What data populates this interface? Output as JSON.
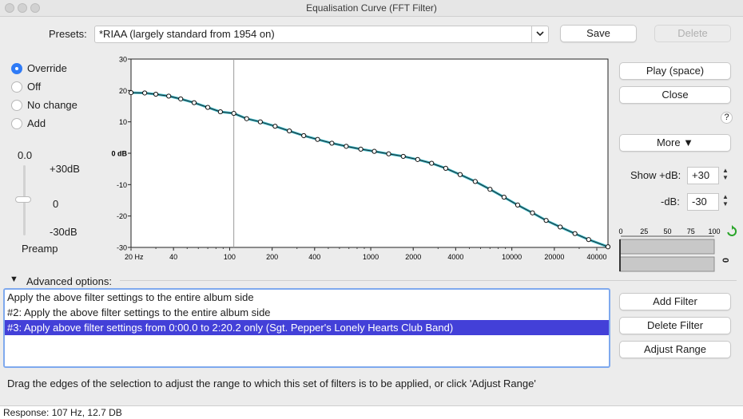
{
  "window": {
    "title": "Equalisation Curve (FFT Filter)"
  },
  "presets": {
    "label": "Presets:",
    "value": "*RIAA (largely standard from 1954 on)",
    "save": "Save",
    "delete": "Delete"
  },
  "mode": {
    "options": [
      "Override",
      "Off",
      "No change",
      "Add"
    ],
    "selected": "Override"
  },
  "preamp": {
    "value": "0.0",
    "max": "+30dB",
    "mid": "0",
    "min": "-30dB",
    "label": "Preamp"
  },
  "graph": {
    "y_ticks": [
      "30",
      "20",
      "10",
      "0 dB",
      "-10",
      "-20",
      "-30"
    ],
    "x_ticks": [
      "20 Hz",
      "40",
      "100",
      "200",
      "400",
      "1000",
      "2000",
      "4000",
      "10000",
      "20000",
      "40000"
    ],
    "response_marker_hz": 107
  },
  "buttons": {
    "play": "Play (space)",
    "close": "Close",
    "help": "?",
    "more": "More ▼"
  },
  "range": {
    "show_label": "Show +dB:",
    "show_value": "+30",
    "minus_label": "-dB:",
    "minus_value": "-30"
  },
  "meter": {
    "ticks": [
      "0",
      "25",
      "50",
      "75",
      "100"
    ],
    "side_value": "0"
  },
  "advanced": {
    "label": "Advanced options:"
  },
  "filters": {
    "items": [
      "Apply the above filter settings to the entire album side",
      "#2: Apply the above filter settings to the entire album side",
      "#3: Apply above filter settings from 0:00.0 to 2:20.2 only (Sgt. Pepper's Lonely Hearts Club Band)"
    ],
    "selected_index": 2,
    "add": "Add Filter",
    "delete": "Delete Filter",
    "adjust": "Adjust Range"
  },
  "hint": "Drag the edges of the selection to adjust the range to which this set of filters is to be applied, or click 'Adjust Range'",
  "status": "Response: 107 Hz, 12.7 DB",
  "colors": {
    "accent": "#2f7bf6",
    "selection": "#4340d8",
    "curve": "#3bb6c4"
  },
  "chart_data": {
    "type": "line",
    "xscale": "log",
    "xlim": [
      20,
      48000
    ],
    "ylim": [
      -30,
      30
    ],
    "x": [
      20,
      25,
      30,
      37,
      45,
      56,
      70,
      86,
      107,
      132,
      165,
      210,
      265,
      335,
      420,
      530,
      670,
      850,
      1060,
      1340,
      1700,
      2150,
      2700,
      3400,
      4300,
      5500,
      7000,
      8800,
      11000,
      14000,
      17500,
      22000,
      28000,
      35000,
      48000
    ],
    "y": [
      19.3,
      19.2,
      18.8,
      18.2,
      17.3,
      16.1,
      14.6,
      13.2,
      12.7,
      11.0,
      10.0,
      8.6,
      7.1,
      5.6,
      4.4,
      3.2,
      2.2,
      1.3,
      0.6,
      -0.2,
      -1.0,
      -2.0,
      -3.2,
      -4.8,
      -6.8,
      -9.0,
      -11.5,
      -14.0,
      -16.5,
      -19.0,
      -21.4,
      -23.5,
      -25.6,
      -27.5,
      -29.8
    ]
  }
}
